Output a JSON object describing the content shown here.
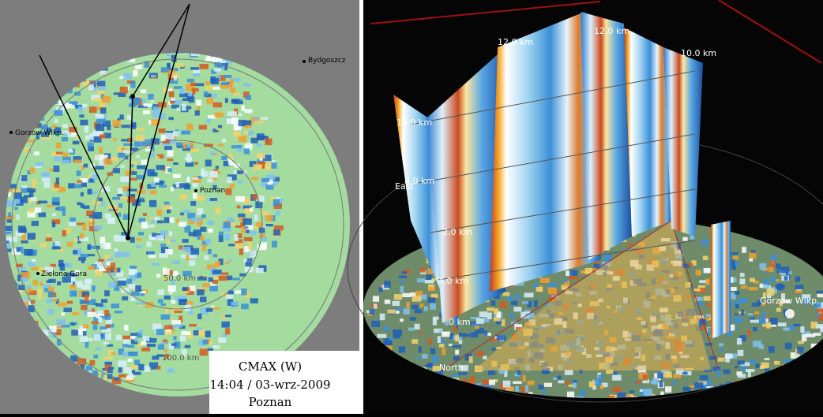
{
  "left_panel": {
    "cities": [
      "Bydgoszcz",
      "Gorzow Wlkp.",
      "Poznan",
      "Zielona Gora"
    ],
    "range_labels": [
      "50.0 km",
      "100.0 km"
    ],
    "caption": {
      "product": "CMAX (W)",
      "time": "14:04 / 03-wrz-2009",
      "site": "Poznan"
    }
  },
  "right_panel": {
    "height_labels": [
      "12.0 km",
      "12.0 km",
      "10.0 km",
      "10.0 km",
      "8.0 km",
      "4.0 km",
      "2.0 km",
      "0 km"
    ],
    "cities": [
      "Gorzow Wlkp."
    ],
    "directions": [
      "North",
      "East"
    ]
  }
}
